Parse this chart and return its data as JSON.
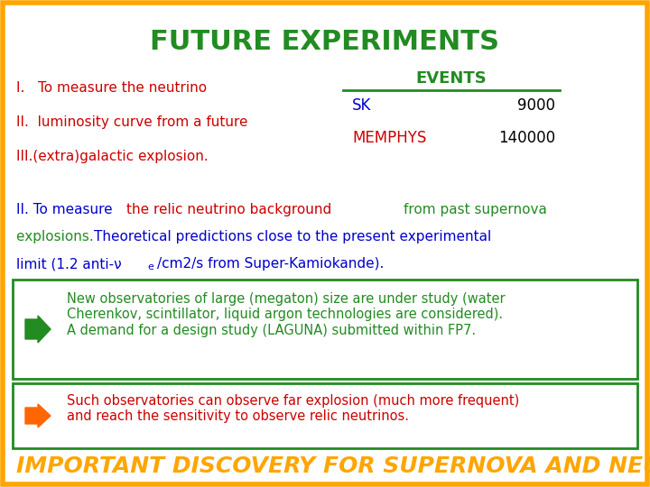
{
  "background_color": "#ffffff",
  "border_color": "#ffa500",
  "title": "FUTURE EXPERIMENTS",
  "title_color": "#228b22",
  "title_fontsize": 22,
  "left_color": "#cc0000",
  "events_header": "EVENTS",
  "events_header_color": "#228b22",
  "sk_label": "SK",
  "sk_value": "9000",
  "sk_color": "#0000cc",
  "memphys_label": "MEMPHYS",
  "memphys_value": "140000",
  "memphys_color": "#cc0000",
  "events_line_color": "#228b22",
  "box1_border": "#228b22",
  "box1_text": "New observatories of large (megaton) size are under study (water\nCherenkov, scintillator, liquid argon technologies are considered).\nA demand for a design study (LAGUNA) submitted within FP7.",
  "box1_text_color": "#228b22",
  "box1_arrow_color": "#228b22",
  "box2_border": "#228b22",
  "box2_text": "Such observatories can observe far explosion (much more frequent)\nand reach the sensitivity to observe relic neutrinos.",
  "box2_text_color": "#cc0000",
  "box2_arrow_color": "#ff6600",
  "footer_text": "IMPORTANT DISCOVERY FOR SUPERNOVA AND NEU",
  "footer_color": "#ffa500",
  "footer_fontsize": 18
}
